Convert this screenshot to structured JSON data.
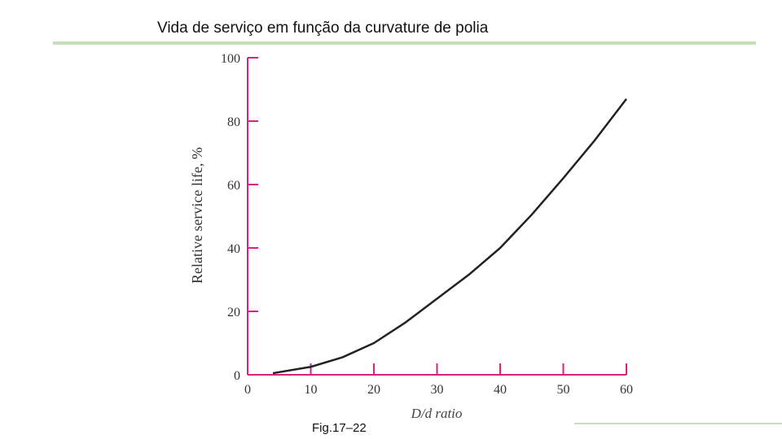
{
  "chart_data": {
    "type": "line",
    "title": "Vida de serviço em função da curvature de polia",
    "x_label": "D/d ratio",
    "y_label": "Relative service life, %",
    "caption": "Fig.17–22",
    "x": [
      4,
      10,
      15,
      20,
      25,
      30,
      35,
      40,
      45,
      50,
      55,
      60
    ],
    "series": [
      {
        "name": "Relative service life",
        "color": "#222222",
        "values": [
          0.5,
          2.5,
          5.5,
          10,
          16.5,
          24,
          31.5,
          40,
          50.5,
          62,
          74,
          87
        ]
      }
    ],
    "xlim": [
      0,
      60
    ],
    "ylim": [
      0,
      100
    ],
    "xticks": [
      0,
      10,
      20,
      30,
      40,
      50,
      60
    ],
    "yticks": [
      0,
      20,
      40,
      60,
      80,
      100
    ],
    "axis_color": "#d4237f"
  }
}
